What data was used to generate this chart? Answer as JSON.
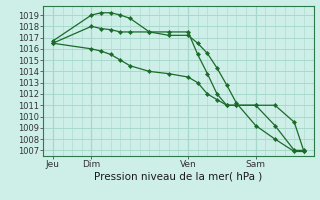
{
  "background_color": "#ceeee8",
  "grid_color": "#a8d8cc",
  "line_color": "#1a6b2a",
  "marker_color": "#1a6b2a",
  "xlabel": "Pression niveau de la mer( hPa )",
  "ylim": [
    1006.5,
    1019.8
  ],
  "yticks": [
    1007,
    1008,
    1009,
    1010,
    1011,
    1012,
    1013,
    1014,
    1015,
    1016,
    1017,
    1018,
    1019
  ],
  "xtick_positions": [
    0,
    4,
    14,
    21
  ],
  "xtick_labels": [
    "Jeu",
    "Dim",
    "Ven",
    "Sam"
  ],
  "xlim": [
    -1,
    27
  ],
  "series": [
    {
      "x": [
        0,
        4,
        5,
        6,
        7,
        8,
        10,
        12,
        14,
        15,
        16,
        17,
        18,
        19,
        21,
        23,
        25,
        26
      ],
      "y": [
        1016.7,
        1019.0,
        1019.2,
        1019.2,
        1019.0,
        1018.7,
        1017.5,
        1017.2,
        1017.2,
        1016.5,
        1015.6,
        1014.3,
        1012.8,
        1011.2,
        1009.2,
        1008.0,
        1006.9,
        1006.9
      ]
    },
    {
      "x": [
        0,
        4,
        5,
        6,
        7,
        8,
        10,
        12,
        14,
        15,
        16,
        17,
        18,
        19,
        21,
        23,
        25,
        26
      ],
      "y": [
        1016.5,
        1018.0,
        1017.8,
        1017.7,
        1017.5,
        1017.5,
        1017.5,
        1017.5,
        1017.5,
        1015.5,
        1013.8,
        1012.0,
        1011.0,
        1011.0,
        1011.0,
        1011.0,
        1009.5,
        1006.9
      ]
    },
    {
      "x": [
        0,
        4,
        5,
        6,
        7,
        8,
        10,
        12,
        14,
        15,
        16,
        17,
        18,
        19,
        21,
        23,
        25,
        26
      ],
      "y": [
        1016.5,
        1016.0,
        1015.8,
        1015.5,
        1015.0,
        1014.5,
        1014.0,
        1013.8,
        1013.5,
        1013.0,
        1012.0,
        1011.5,
        1011.0,
        1011.0,
        1011.0,
        1009.2,
        1007.0,
        1007.0
      ]
    }
  ]
}
